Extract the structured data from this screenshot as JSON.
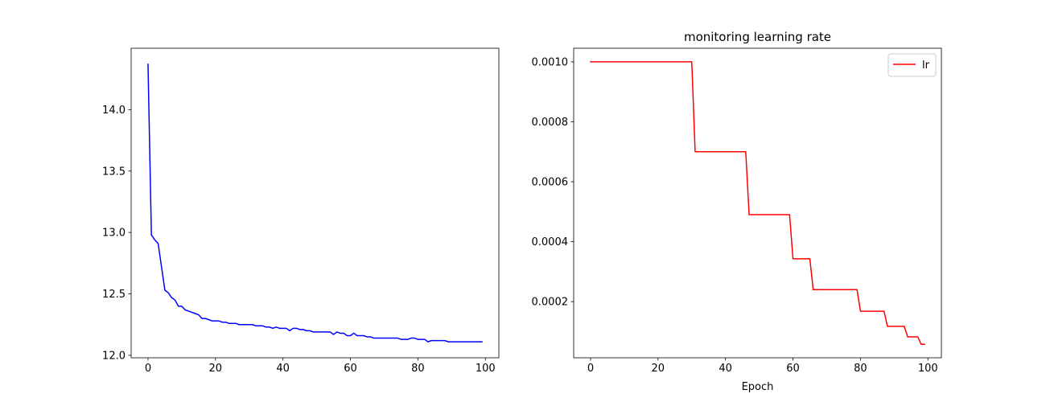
{
  "chart_data": [
    {
      "type": "line",
      "title": "",
      "xlabel": "",
      "ylabel": "",
      "xlim": [
        -5,
        104
      ],
      "ylim": [
        11.98,
        14.5
      ],
      "xticks": [
        0,
        20,
        40,
        60,
        80,
        100
      ],
      "yticks": [
        12.0,
        12.5,
        13.0,
        13.5,
        14.0
      ],
      "ytick_labels": [
        "12.0",
        "12.5",
        "13.0",
        "13.5",
        "14.0"
      ],
      "legend": null,
      "series": [
        {
          "color": "#0000ff",
          "x": [
            0,
            1,
            2,
            3,
            4,
            5,
            6,
            7,
            8,
            9,
            10,
            11,
            12,
            13,
            14,
            15,
            16,
            17,
            18,
            19,
            20,
            21,
            22,
            23,
            24,
            25,
            26,
            27,
            28,
            29,
            30,
            31,
            32,
            33,
            34,
            35,
            36,
            37,
            38,
            39,
            40,
            41,
            42,
            43,
            44,
            45,
            46,
            47,
            48,
            49,
            50,
            51,
            52,
            53,
            54,
            55,
            56,
            57,
            58,
            59,
            60,
            61,
            62,
            63,
            64,
            65,
            66,
            67,
            68,
            69,
            70,
            71,
            72,
            73,
            74,
            75,
            76,
            77,
            78,
            79,
            80,
            81,
            82,
            83,
            84,
            85,
            86,
            87,
            88,
            89,
            90,
            91,
            92,
            93,
            94,
            95,
            96,
            97,
            98,
            99
          ],
          "values": [
            14.37,
            12.98,
            12.94,
            12.91,
            12.72,
            12.53,
            12.51,
            12.47,
            12.45,
            12.4,
            12.4,
            12.37,
            12.36,
            12.35,
            12.34,
            12.33,
            12.3,
            12.3,
            12.29,
            12.28,
            12.28,
            12.28,
            12.27,
            12.27,
            12.26,
            12.26,
            12.26,
            12.25,
            12.25,
            12.25,
            12.25,
            12.25,
            12.24,
            12.24,
            12.24,
            12.23,
            12.23,
            12.22,
            12.23,
            12.22,
            12.22,
            12.22,
            12.2,
            12.22,
            12.22,
            12.21,
            12.21,
            12.2,
            12.2,
            12.19,
            12.19,
            12.19,
            12.19,
            12.19,
            12.19,
            12.17,
            12.19,
            12.18,
            12.18,
            12.16,
            12.16,
            12.18,
            12.16,
            12.16,
            12.16,
            12.15,
            12.15,
            12.14,
            12.14,
            12.14,
            12.14,
            12.14,
            12.14,
            12.14,
            12.14,
            12.13,
            12.13,
            12.13,
            12.14,
            12.14,
            12.13,
            12.13,
            12.13,
            12.11,
            12.12,
            12.12,
            12.12,
            12.12,
            12.12,
            12.11,
            12.11,
            12.11,
            12.11,
            12.11,
            12.11,
            12.11,
            12.11,
            12.11,
            12.11,
            12.11
          ]
        }
      ]
    },
    {
      "type": "line",
      "title": "monitoring learning rate",
      "xlabel": "Epoch",
      "ylabel": "",
      "xlim": [
        -5,
        104
      ],
      "ylim": [
        1.26e-05,
        0.0010454
      ],
      "xticks": [
        0,
        20,
        40,
        60,
        80,
        100
      ],
      "yticks": [
        0.0002,
        0.0004,
        0.0006,
        0.0008,
        0.001
      ],
      "ytick_labels": [
        "0.0002",
        "0.0004",
        "0.0006",
        "0.0008",
        "0.0010"
      ],
      "legend": "top-right",
      "series": [
        {
          "name": "lr",
          "color": "#ff0000",
          "x": [
            0,
            30,
            31,
            46,
            47,
            59,
            60,
            65,
            66,
            79,
            80,
            87,
            88,
            93,
            94,
            97,
            98,
            99
          ],
          "values": [
            0.001,
            0.001,
            0.0007,
            0.0007,
            0.00049,
            0.00049,
            0.000343,
            0.000343,
            0.00024,
            0.00024,
            0.000168,
            0.000168,
            0.0001176,
            0.0001176,
            8.24e-05,
            8.24e-05,
            5.76e-05,
            5.76e-05
          ]
        }
      ]
    }
  ]
}
